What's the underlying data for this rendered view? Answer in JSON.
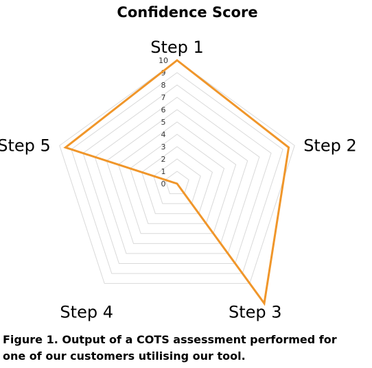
{
  "chart_data": {
    "type": "radar",
    "title": "Confidence Score",
    "categories": [
      "Step 1",
      "Step 2",
      "Step 3",
      "Step 4",
      "Step 5"
    ],
    "series": [
      {
        "values": [
          10,
          9.5,
          12,
          0,
          9.5
        ],
        "color": "#f0962a"
      }
    ],
    "r_ticks": [
      "0",
      "1",
      "2",
      "3",
      "4",
      "5",
      "6",
      "7",
      "8",
      "9",
      "10"
    ],
    "rlim": [
      0,
      10
    ],
    "grid": true,
    "grid_color": "#d9d9d9"
  },
  "caption": {
    "line1": "Figure 1.  Output of a COTS assessment performed for",
    "line2": "one of our customers utilising our tool."
  }
}
